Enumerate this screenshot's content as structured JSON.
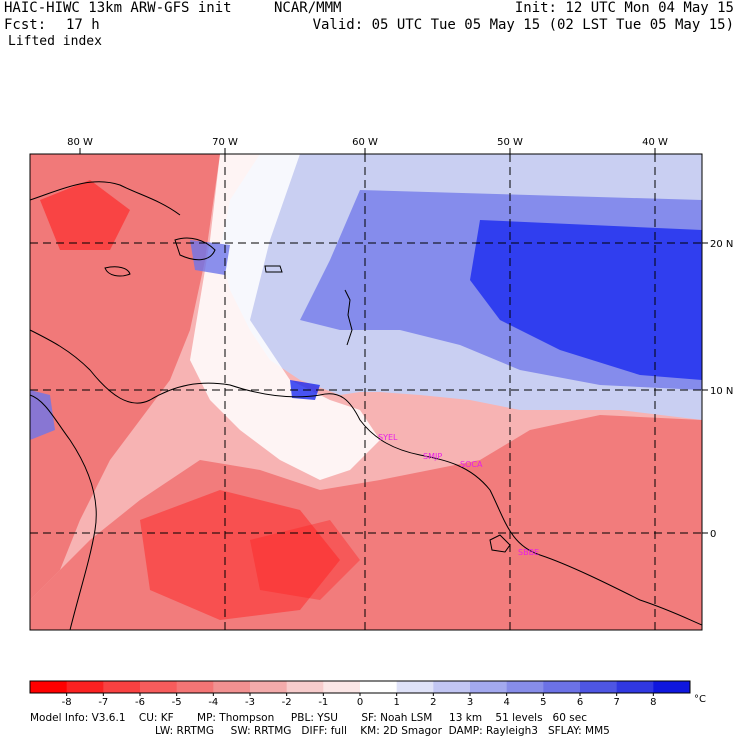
{
  "header": {
    "model": "HAIC-HIWC 13km ARW-GFS init",
    "org": "NCAR/MMM",
    "fcst_label": "Fcst:",
    "fcst_value": "17 h",
    "field": "Lifted index",
    "init": "Init: 12 UTC Mon 04 May 15",
    "valid": "Valid: 05 UTC Tue 05 May 15 (02 LST Tue 05 May 15)"
  },
  "map": {
    "lon_labels": [
      "80 W",
      "70 W",
      "60 W",
      "50 W",
      "40 W"
    ],
    "lat_labels": [
      "20 N",
      "10 N",
      "0"
    ],
    "stations": [
      "SYEL",
      "SMJP",
      "SOCA",
      "SBBE"
    ],
    "colors": {
      "unstable_strong": "#ff1a1a",
      "unstable_mid": "#f06e6e",
      "unstable_weak": "#f7b3b3",
      "neutral": "#ffffff",
      "stable_weak": "#c9cff2",
      "stable_mid": "#6e76ea",
      "stable_strong": "#1a2bf0",
      "coast": "#000000",
      "station": "#e81ee8"
    }
  },
  "colorbar": {
    "ticks": [
      "-8",
      "-7",
      "-6",
      "-5",
      "-4",
      "-3",
      "-2",
      "-1",
      "0",
      "1",
      "2",
      "3",
      "4",
      "5",
      "6",
      "7",
      "8"
    ],
    "unit": "°C",
    "colors": [
      "#ff0000",
      "#fb2121",
      "#f94141",
      "#f75c5c",
      "#f47575",
      "#f29191",
      "#f3abab",
      "#f7cccc",
      "#fbe6e6",
      "#ffffff",
      "#dfe2f8",
      "#c2c6f3",
      "#a3a9ef",
      "#878de9",
      "#6c72e6",
      "#4e56e3",
      "#3038e1",
      "#0f17df"
    ]
  },
  "footer": {
    "line1": "Model Info: V3.6.1    CU: KF       MP: Thompson     PBL: YSU       SF: Noah LSM     13 km    51 levels   60 sec",
    "line2": "LW: RRTMG     SW: RRTMG   DIFF: full    KM: 2D Smagor  DAMP: Rayleigh3   SFLAY: MM5"
  }
}
